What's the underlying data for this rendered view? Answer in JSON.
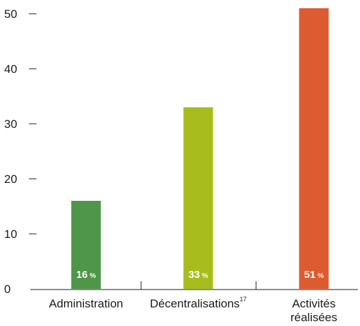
{
  "chart_data": {
    "type": "bar",
    "categories": [
      {
        "label": "Administration",
        "lines": [
          "Administration"
        ],
        "superscript": ""
      },
      {
        "label": "Décentralisations",
        "lines": [
          "Décentralisations"
        ],
        "superscript": "17"
      },
      {
        "label": "Activités réalisées",
        "lines": [
          "Activités",
          "réalisées"
        ],
        "superscript": ""
      }
    ],
    "values": [
      16,
      33,
      51
    ],
    "value_labels": [
      "16",
      "33",
      "51"
    ],
    "value_unit": "%",
    "colors": [
      "#4f954a",
      "#a8bd1d",
      "#dd5b31"
    ],
    "ylim": [
      0,
      50
    ],
    "yticks": [
      0,
      10,
      20,
      30,
      40,
      50
    ],
    "title": "",
    "xlabel": "",
    "ylabel": "",
    "grid": false
  }
}
